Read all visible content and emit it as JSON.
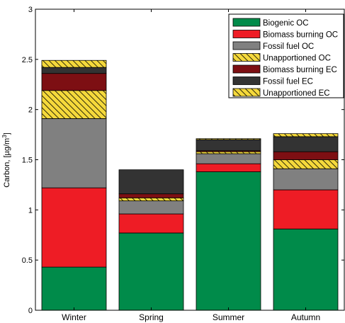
{
  "chart_data": {
    "type": "bar",
    "stacked": true,
    "categories": [
      "Winter",
      "Spring",
      "Summer",
      "Autumn"
    ],
    "ylabel": "Carbon, [µg/m",
    "ylabel_sup": "3",
    "ylabel_end": "]",
    "ylim": [
      0,
      3
    ],
    "yticks": [
      "0",
      "0.5",
      "1",
      "1.5",
      "2",
      "2.5",
      "3"
    ],
    "legend_position": "top-right",
    "series": [
      {
        "name": "Biogenic OC",
        "color": "#008b4a",
        "pattern": "solid",
        "values": [
          0.43,
          0.77,
          1.38,
          0.81
        ]
      },
      {
        "name": "Biomass burning OC",
        "color": "#ee1c25",
        "pattern": "solid",
        "values": [
          0.79,
          0.19,
          0.08,
          0.39
        ]
      },
      {
        "name": "Fossil fuel OC",
        "color": "#808080",
        "pattern": "solid",
        "values": [
          0.69,
          0.13,
          0.1,
          0.21
        ]
      },
      {
        "name": "Unapportioned OC",
        "color": "#f5d93b",
        "pattern": "hatch",
        "values": [
          0.28,
          0.03,
          0.02,
          0.09
        ]
      },
      {
        "name": "Biomass burning EC",
        "color": "#7d0f13",
        "pattern": "solid",
        "values": [
          0.17,
          0.04,
          0.01,
          0.08
        ]
      },
      {
        "name": "Fossil fuel EC",
        "color": "#333333",
        "pattern": "solid",
        "values": [
          0.06,
          0.24,
          0.11,
          0.15
        ]
      },
      {
        "name": "Unapportioned EC",
        "color": "#f5d93b",
        "pattern": "hatch",
        "values": [
          0.07,
          0.0,
          0.01,
          0.03
        ]
      }
    ]
  }
}
